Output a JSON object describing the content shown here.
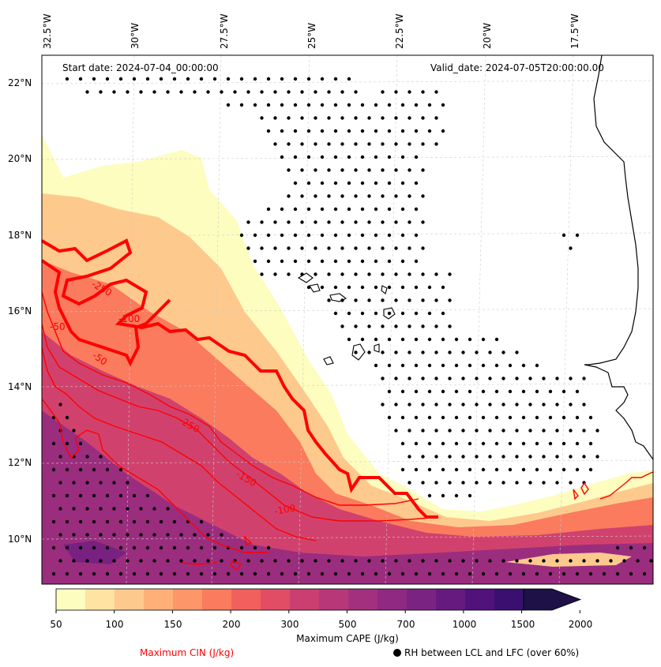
{
  "header": {
    "start_date": "Start date: 2024-07-04_00:00:00",
    "valid_date": "Valid_date: 2024-07-05T20:00:00.00"
  },
  "axes": {
    "lon_labels": [
      "32.5°W",
      "30°W",
      "27.5°W",
      "25°W",
      "22.5°W",
      "20°W",
      "17.5°W"
    ],
    "lat_labels": [
      "22°N",
      "20°N",
      "18°N",
      "16°N",
      "14°N",
      "12°N",
      "10°N"
    ]
  },
  "colorbar": {
    "title": "Maximum CAPE (J/kg)",
    "tick_labels": [
      "50",
      "100",
      "150",
      "200",
      "300",
      "500",
      "700",
      "1000",
      "1500",
      "2000"
    ],
    "colors": [
      "#fcfdbf",
      "#fee3a2",
      "#fec98d",
      "#feb078",
      "#fd9668",
      "#fa7b5e",
      "#f1605d",
      "#e14d64",
      "#cb3e70",
      "#b73779",
      "#a3307e",
      "#8f2981",
      "#7b2382",
      "#661a80",
      "#51127c",
      "#3b0f70",
      "#1d1147"
    ]
  },
  "legend": {
    "cin": "Maximum CIN (J/kg)",
    "rh": "RH between LCL and LFC (over 60%)"
  },
  "contour_labels": [
    "-250",
    "-100",
    "-50",
    "-250",
    "-150",
    "-100",
    "-50"
  ],
  "colors": {
    "cin_line": "#ff0000",
    "coast": "#000000",
    "grid": "#cccccc"
  }
}
